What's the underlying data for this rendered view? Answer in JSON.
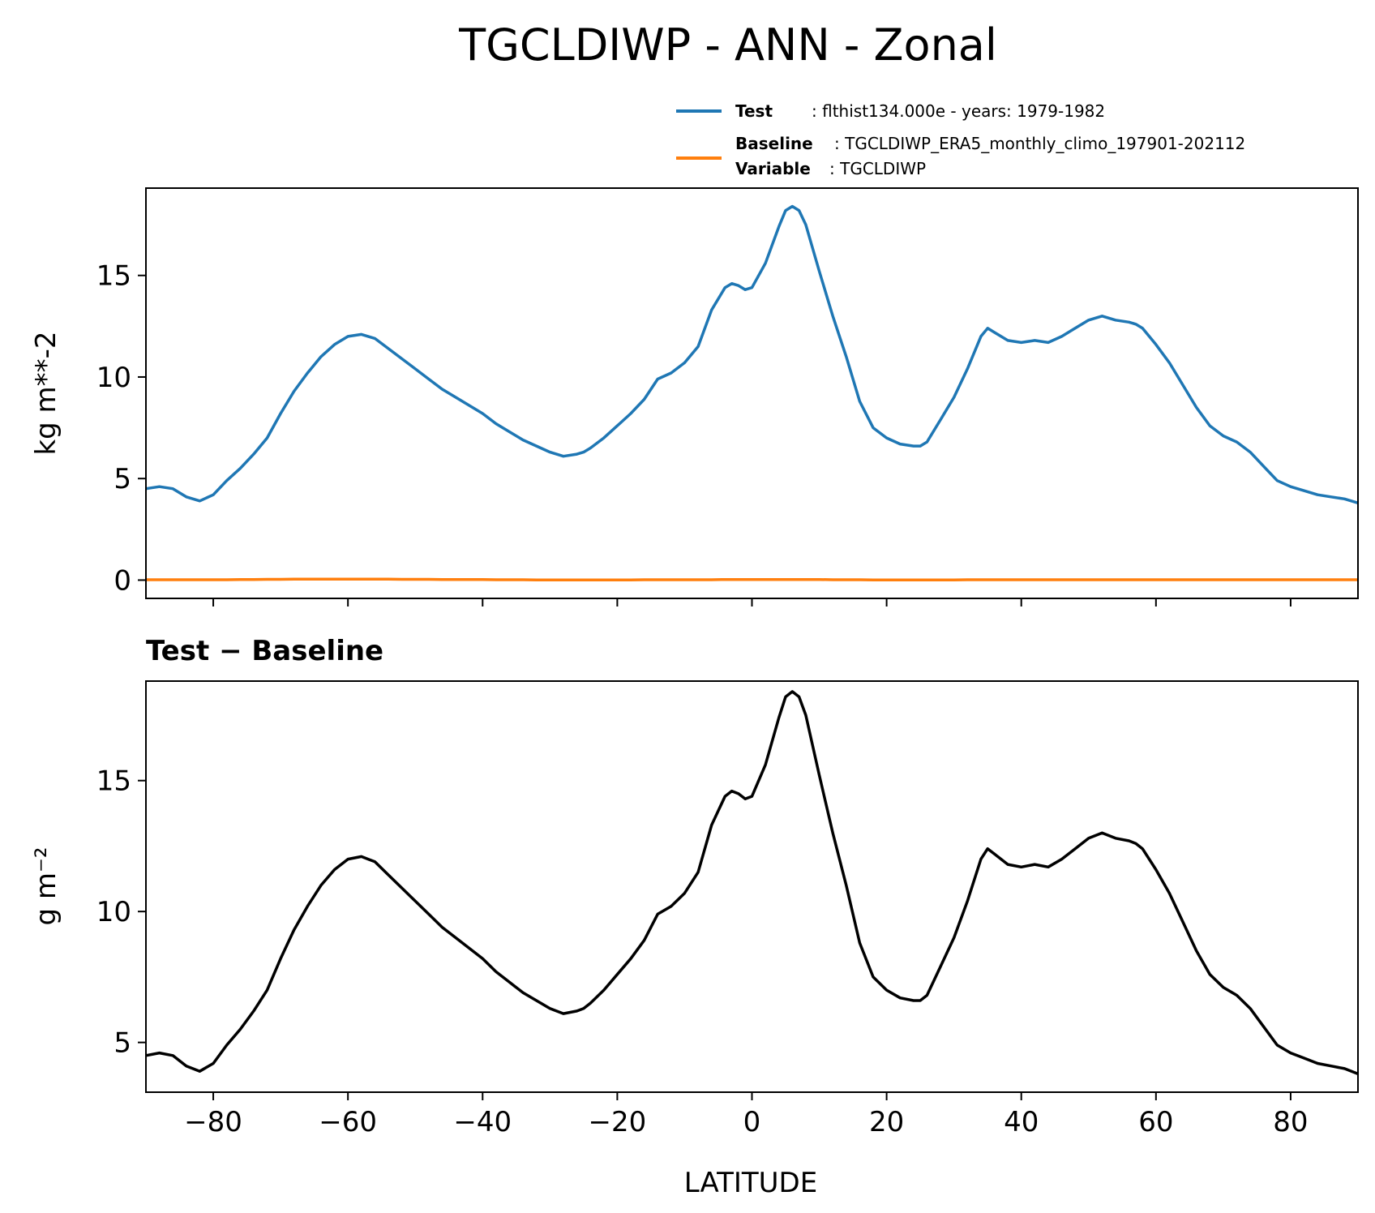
{
  "chart_data": [
    {
      "type": "line",
      "title": "TGCLDIWP - ANN - Zonal",
      "ylabel": "kg m**-2",
      "xlabel": "",
      "xlim": [
        -90,
        90
      ],
      "ylim": [
        -0.9,
        19.3
      ],
      "xticks": [
        -80,
        -60,
        -40,
        -20,
        0,
        20,
        40,
        60,
        80
      ],
      "xtick_labels_shown": false,
      "yticks": [
        0,
        5,
        10,
        15
      ],
      "ytick_labels": [
        "0",
        "5",
        "10",
        "15"
      ],
      "grid": false,
      "legend": {
        "placement": "top-right, above axes",
        "entries": [
          {
            "lines": [
              {
                "bold": "Test",
                "text": "flthist134.000e - years: 1979-1982"
              }
            ],
            "color": "#1f77b4"
          },
          {
            "lines": [
              {
                "bold": "Baseline",
                "text": "TGCLDIWP_ERA5_monthly_climo_197901-202112"
              },
              {
                "bold": "Variable",
                "text": "TGCLDIWP"
              }
            ],
            "color": "#ff7f0e"
          }
        ]
      },
      "x": [
        -90,
        -88,
        -86,
        -84,
        -82,
        -80,
        -78,
        -76,
        -74,
        -72,
        -70,
        -68,
        -66,
        -64,
        -62,
        -60,
        -58,
        -57,
        -56,
        -54,
        -52,
        -50,
        -48,
        -46,
        -44,
        -42,
        -40,
        -38,
        -36,
        -34,
        -32,
        -30,
        -28,
        -26,
        -25,
        -24,
        -22,
        -20,
        -18,
        -16,
        -14,
        -12,
        -10,
        -8,
        -6,
        -4,
        -3,
        -2,
        -1,
        0,
        2,
        4,
        5,
        6,
        7,
        8,
        10,
        12,
        14,
        16,
        18,
        20,
        22,
        24,
        25,
        26,
        28,
        30,
        32,
        34,
        35,
        36,
        38,
        40,
        42,
        44,
        46,
        48,
        50,
        52,
        54,
        56,
        57,
        58,
        60,
        62,
        64,
        66,
        68,
        70,
        72,
        74,
        76,
        78,
        80,
        82,
        84,
        86,
        88,
        90
      ],
      "series": [
        {
          "name": "Test",
          "color": "#1f77b4",
          "values": [
            4.5,
            4.6,
            4.5,
            4.1,
            3.9,
            4.2,
            4.9,
            5.5,
            6.2,
            7.0,
            8.2,
            9.3,
            10.2,
            11.0,
            11.6,
            12.0,
            12.1,
            12.0,
            11.9,
            11.4,
            10.9,
            10.4,
            9.9,
            9.4,
            9.0,
            8.6,
            8.2,
            7.7,
            7.3,
            6.9,
            6.6,
            6.3,
            6.1,
            6.2,
            6.3,
            6.5,
            7.0,
            7.6,
            8.2,
            8.9,
            9.9,
            10.2,
            10.7,
            11.5,
            13.3,
            14.4,
            14.6,
            14.5,
            14.3,
            14.4,
            15.6,
            17.4,
            18.2,
            18.4,
            18.2,
            17.5,
            15.2,
            13.0,
            11.0,
            8.8,
            7.5,
            7.0,
            6.7,
            6.6,
            6.6,
            6.8,
            7.9,
            9.0,
            10.4,
            12.0,
            12.4,
            12.2,
            11.8,
            11.7,
            11.8,
            11.7,
            12.0,
            12.4,
            12.8,
            13.0,
            12.8,
            12.7,
            12.6,
            12.4,
            11.6,
            10.7,
            9.6,
            8.5,
            7.6,
            7.1,
            6.8,
            6.3,
            5.6,
            4.9,
            4.6,
            4.4,
            4.2,
            4.1,
            4.0,
            3.8
          ]
        },
        {
          "name": "Baseline",
          "color": "#ff7f0e",
          "values": [
            0.02,
            0.02,
            0.02,
            0.02,
            0.02,
            0.02,
            0.02,
            0.03,
            0.03,
            0.04,
            0.04,
            0.05,
            0.05,
            0.05,
            0.05,
            0.05,
            0.05,
            0.05,
            0.05,
            0.05,
            0.04,
            0.04,
            0.04,
            0.03,
            0.03,
            0.03,
            0.03,
            0.02,
            0.02,
            0.02,
            0.01,
            0.01,
            0.01,
            0.01,
            0.01,
            0.01,
            0.01,
            0.01,
            0.01,
            0.02,
            0.02,
            0.02,
            0.02,
            0.02,
            0.02,
            0.03,
            0.03,
            0.03,
            0.03,
            0.03,
            0.03,
            0.03,
            0.03,
            0.03,
            0.03,
            0.03,
            0.03,
            0.02,
            0.02,
            0.02,
            0.01,
            0.01,
            0.01,
            0.01,
            0.01,
            0.01,
            0.01,
            0.01,
            0.02,
            0.02,
            0.02,
            0.02,
            0.02,
            0.02,
            0.02,
            0.02,
            0.02,
            0.02,
            0.02,
            0.02,
            0.02,
            0.02,
            0.02,
            0.02,
            0.02,
            0.02,
            0.02,
            0.02,
            0.02,
            0.02,
            0.02,
            0.02,
            0.02,
            0.02,
            0.02,
            0.02,
            0.02,
            0.02,
            0.02,
            0.02
          ]
        }
      ]
    },
    {
      "type": "line",
      "title": "Test − Baseline",
      "ylabel": "g m⁻²",
      "xlabel": "LATITUDE",
      "xlim": [
        -90,
        90
      ],
      "ylim": [
        3.1,
        18.8
      ],
      "xticks": [
        -80,
        -60,
        -40,
        -20,
        0,
        20,
        40,
        60,
        80
      ],
      "xtick_labels": [
        "−80",
        "−60",
        "−40",
        "−20",
        "0",
        "20",
        "40",
        "60",
        "80"
      ],
      "yticks": [
        5,
        10,
        15
      ],
      "ytick_labels": [
        "5",
        "10",
        "15"
      ],
      "grid": false,
      "x": [
        -90,
        -88,
        -86,
        -84,
        -82,
        -80,
        -78,
        -76,
        -74,
        -72,
        -70,
        -68,
        -66,
        -64,
        -62,
        -60,
        -58,
        -57,
        -56,
        -54,
        -52,
        -50,
        -48,
        -46,
        -44,
        -42,
        -40,
        -38,
        -36,
        -34,
        -32,
        -30,
        -28,
        -26,
        -25,
        -24,
        -22,
        -20,
        -18,
        -16,
        -14,
        -12,
        -10,
        -8,
        -6,
        -4,
        -3,
        -2,
        -1,
        0,
        2,
        4,
        5,
        6,
        7,
        8,
        10,
        12,
        14,
        16,
        18,
        20,
        22,
        24,
        25,
        26,
        28,
        30,
        32,
        34,
        35,
        36,
        38,
        40,
        42,
        44,
        46,
        48,
        50,
        52,
        54,
        56,
        57,
        58,
        60,
        62,
        64,
        66,
        68,
        70,
        72,
        74,
        76,
        78,
        80,
        82,
        84,
        86,
        88,
        90
      ],
      "series": [
        {
          "color": "#000000",
          "values": [
            4.5,
            4.6,
            4.5,
            4.1,
            3.9,
            4.2,
            4.9,
            5.5,
            6.2,
            7.0,
            8.2,
            9.3,
            10.2,
            11.0,
            11.6,
            12.0,
            12.1,
            12.0,
            11.9,
            11.4,
            10.9,
            10.4,
            9.9,
            9.4,
            9.0,
            8.6,
            8.2,
            7.7,
            7.3,
            6.9,
            6.6,
            6.3,
            6.1,
            6.2,
            6.3,
            6.5,
            7.0,
            7.6,
            8.2,
            8.9,
            9.9,
            10.2,
            10.7,
            11.5,
            13.3,
            14.4,
            14.6,
            14.5,
            14.3,
            14.4,
            15.6,
            17.4,
            18.2,
            18.4,
            18.2,
            17.5,
            15.2,
            13.0,
            11.0,
            8.8,
            7.5,
            7.0,
            6.7,
            6.6,
            6.6,
            6.8,
            7.9,
            9.0,
            10.4,
            12.0,
            12.4,
            12.2,
            11.8,
            11.7,
            11.8,
            11.7,
            12.0,
            12.4,
            12.8,
            13.0,
            12.8,
            12.7,
            12.6,
            12.4,
            11.6,
            10.7,
            9.6,
            8.5,
            7.6,
            7.1,
            6.8,
            6.3,
            5.6,
            4.9,
            4.6,
            4.4,
            4.2,
            4.1,
            4.0,
            3.8
          ]
        }
      ]
    }
  ]
}
